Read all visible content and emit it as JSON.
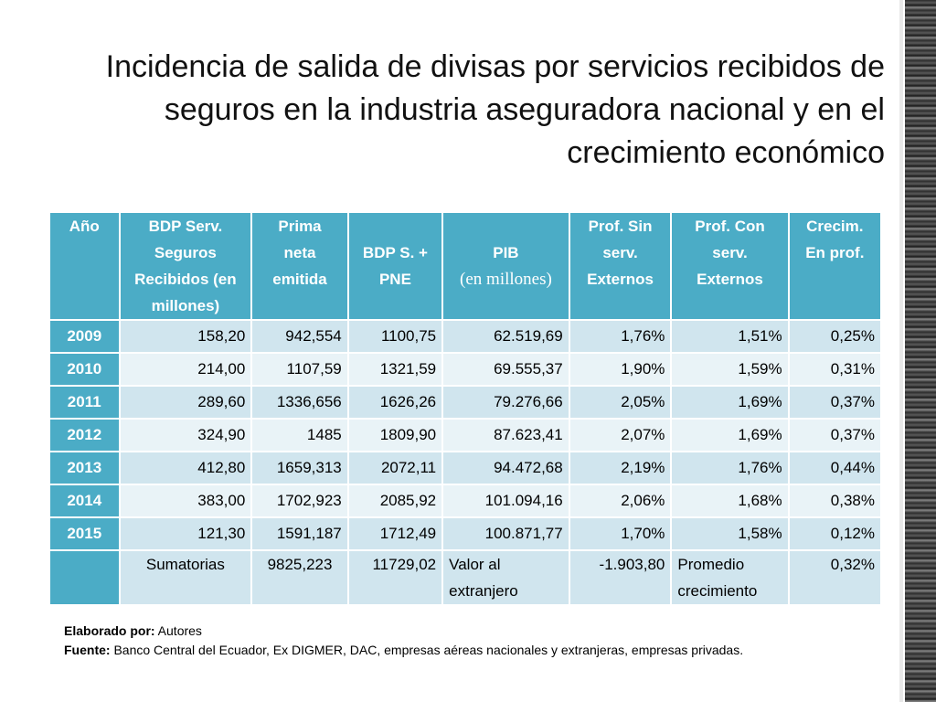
{
  "title_line1": "Incidencia de salida de divisas por servicios recibidos de",
  "title_line2": "seguros en la industria aseguradora nacional y en el",
  "title_line3": "crecimiento económico",
  "headers": {
    "year": "Año",
    "bdp_line1": "BDP Serv.",
    "bdp_line2": "Seguros",
    "bdp_line3": "Recibidos (en",
    "bdp_line4": "millones)",
    "prima_line1": "Prima",
    "prima_line2": "neta",
    "prima_line3": "emitida",
    "bdps_line1": "BDP S. +",
    "bdps_line2": "PNE",
    "pib_line1": "PIB",
    "pib_line2": "(en millones)",
    "sin_line1": "Prof. Sin",
    "sin_line2": "serv.",
    "sin_line3": "Externos",
    "con_line1": "Prof. Con",
    "con_line2": "serv.",
    "con_line3": "Externos",
    "crec_line1": "Crecim.",
    "crec_line2": "En prof."
  },
  "rows": [
    {
      "year": "2009",
      "bdp": "158,20",
      "prima": "942,554",
      "bdps": "1100,75",
      "pib": "62.519,69",
      "sin": "1,76%",
      "con": "1,51%",
      "crec": "0,25%"
    },
    {
      "year": "2010",
      "bdp": "214,00",
      "prima": "1107,59",
      "bdps": "1321,59",
      "pib": "69.555,37",
      "sin": "1,90%",
      "con": "1,59%",
      "crec": "0,31%"
    },
    {
      "year": "2011",
      "bdp": "289,60",
      "prima": "1336,656",
      "bdps": "1626,26",
      "pib": "79.276,66",
      "sin": "2,05%",
      "con": "1,69%",
      "crec": "0,37%"
    },
    {
      "year": "2012",
      "bdp": "324,90",
      "prima": "1485",
      "bdps": "1809,90",
      "pib": "87.623,41",
      "sin": "2,07%",
      "con": "1,69%",
      "crec": "0,37%"
    },
    {
      "year": "2013",
      "bdp": "412,80",
      "prima": "1659,313",
      "bdps": "2072,11",
      "pib": "94.472,68",
      "sin": "2,19%",
      "con": "1,76%",
      "crec": "0,44%"
    },
    {
      "year": "2014",
      "bdp": "383,00",
      "prima": "1702,923",
      "bdps": "2085,92",
      "pib": "101.094,16",
      "sin": "2,06%",
      "con": "1,68%",
      "crec": "0,38%"
    },
    {
      "year": "2015",
      "bdp": "121,30",
      "prima": "1591,187",
      "bdps": "1712,49",
      "pib": "100.871,77",
      "sin": "1,70%",
      "con": "1,58%",
      "crec": "0,12%"
    }
  ],
  "summary": {
    "label": "Sumatorias",
    "prima": "9825,223",
    "bdps": "11729,02",
    "valor_line1": "Valor al",
    "valor_line2": "extranjero",
    "valor": "-1.903,80",
    "promedio_line1": "Promedio",
    "promedio_line2": "crecimiento",
    "promedio": "0,32%"
  },
  "footer": {
    "elaborado_label": "Elaborado por:",
    "elaborado_value": " Autores",
    "fuente_label": "Fuente:",
    "fuente_value": " Banco Central del Ecuador, Ex DIGMER, DAC, empresas aéreas nacionales y extranjeras, empresas privadas."
  }
}
